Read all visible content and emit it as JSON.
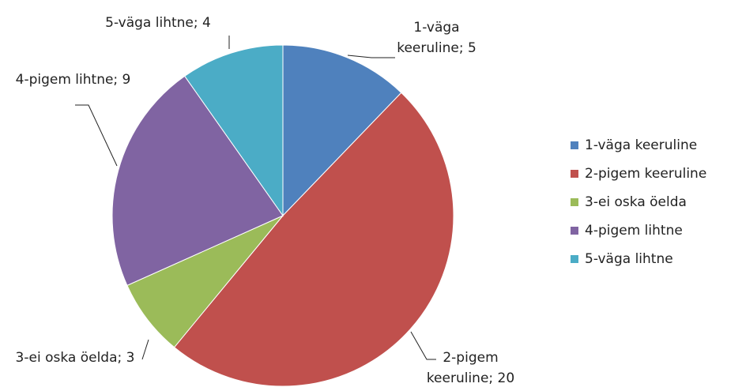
{
  "chart_data": {
    "type": "pie",
    "categories": [
      "1-väga keeruline",
      "2-pigem keeruline",
      "3-ei oska öelda",
      "4-pigem lihtne",
      "5-väga lihtne"
    ],
    "values": [
      5,
      20,
      3,
      9,
      4
    ],
    "value_labels": [
      "1-väga keeruline; 5",
      "2-pigem keeruline; 20",
      "3-ei oska öelda; 3",
      "4-pigem lihtne; 9",
      "5-väga lihtne; 4"
    ],
    "colors": [
      "#4f81bd",
      "#c0504d",
      "#9bbb59",
      "#8064a2",
      "#4bacc6"
    ],
    "legend": "right"
  }
}
